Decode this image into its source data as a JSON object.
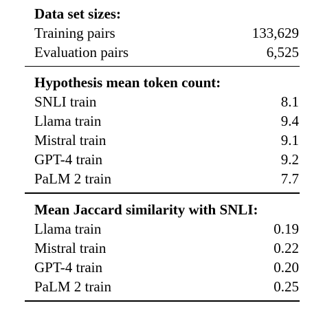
{
  "table": {
    "sections": [
      {
        "heading": "Data set sizes:",
        "rows": [
          {
            "label": "Training pairs",
            "value": "133,629"
          },
          {
            "label": "Evaluation pairs",
            "value": "6,525"
          }
        ]
      },
      {
        "heading": "Hypothesis mean token count:",
        "rows": [
          {
            "label": "SNLI train",
            "value": "8.1"
          },
          {
            "label": "Llama train",
            "value": "9.4"
          },
          {
            "label": "Mistral train",
            "value": "9.1"
          },
          {
            "label": "GPT-4 train",
            "value": "9.2"
          },
          {
            "label": "PaLM 2 train",
            "value": "7.7"
          }
        ]
      },
      {
        "heading": "Mean Jaccard similarity with SNLI:",
        "rows": [
          {
            "label": "Llama train",
            "value": "0.19"
          },
          {
            "label": "Mistral train",
            "value": "0.22"
          },
          {
            "label": "GPT-4 train",
            "value": "0.20"
          },
          {
            "label": "PaLM 2 train",
            "value": "0.25"
          }
        ]
      }
    ]
  }
}
